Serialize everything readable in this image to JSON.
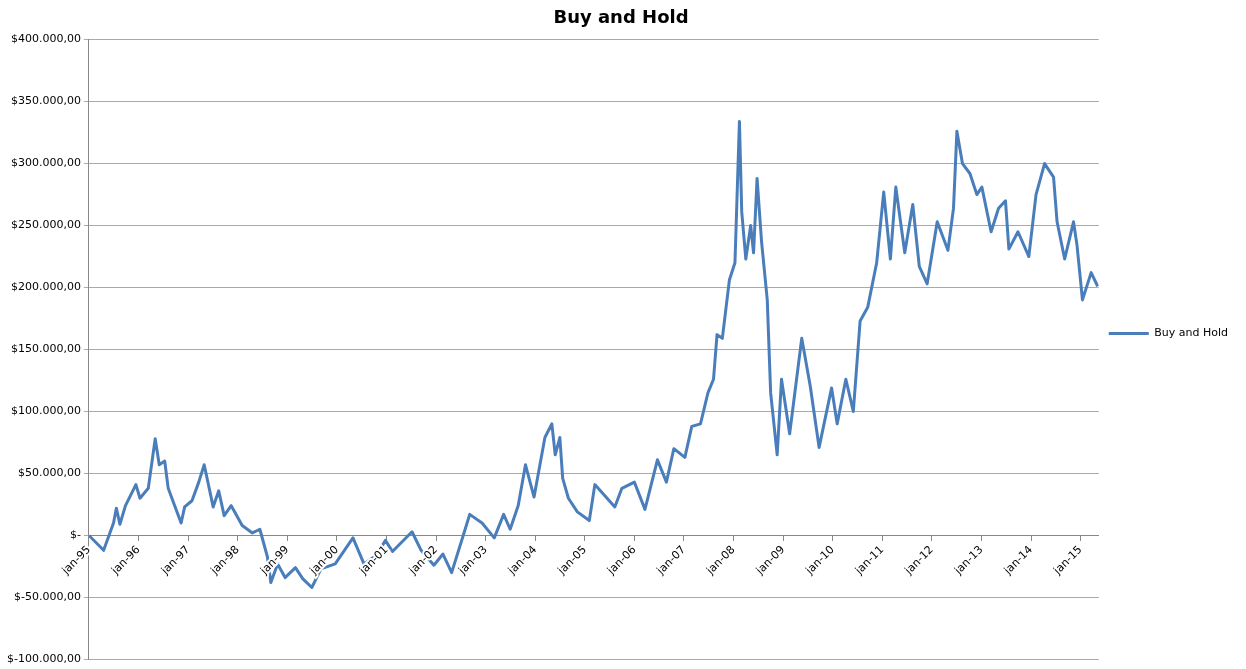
{
  "chart_data": {
    "type": "line",
    "title": "Buy and Hold",
    "x": [
      "1995-01-01",
      "1995-04-19",
      "1995-07-01",
      "1995-07-22",
      "1995-08-17",
      "1995-09-27",
      "1995-12-13",
      "1996-01-12",
      "1996-03-13",
      "1996-05-03",
      "1996-06-02",
      "1996-07-12",
      "1996-08-07",
      "1996-11-10",
      "1996-12-06",
      "1997-01-29",
      "1997-03-20",
      "1997-04-29",
      "1997-07-04",
      "1997-08-14",
      "1997-09-23",
      "1997-11-14",
      "1998-02-03",
      "1998-04-19",
      "1998-06-13",
      "1998-08-07",
      "1998-09-02",
      "1998-10-22",
      "1998-12-16",
      "1999-03-02",
      "1999-04-26",
      "1999-07-01",
      "1999-09-06",
      "1999-12-20",
      "2000-04-29",
      "2000-07-19",
      "2000-10-19",
      "2000-12-24",
      "2001-02-14",
      "2001-07-08",
      "2001-09-13",
      "2001-12-16",
      "2002-02-21",
      "2002-04-26",
      "2002-07-26",
      "2002-09-06",
      "2002-12-06",
      "2003-03-06",
      "2003-05-14",
      "2003-07-01",
      "2003-08-29",
      "2003-10-22",
      "2003-12-24",
      "2004-03-13",
      "2004-05-03",
      "2004-05-28",
      "2004-07-01",
      "2004-07-22",
      "2004-09-02",
      "2004-11-07",
      "2005-02-03",
      "2005-03-16",
      "2005-08-10",
      "2005-10-01",
      "2006-01-01",
      "2006-03-20",
      "2006-06-20",
      "2006-08-25",
      "2006-10-19",
      "2007-01-08",
      "2007-02-28",
      "2007-05-03",
      "2007-06-27",
      "2007-08-07",
      "2007-09-02",
      "2007-10-11",
      "2007-12-02",
      "2008-01-12",
      "2008-02-14",
      "2008-03-02",
      "2008-04-01",
      "2008-05-07",
      "2008-05-28",
      "2008-06-23",
      "2008-07-26",
      "2008-09-06",
      "2008-10-01",
      "2008-11-18",
      "2008-12-20",
      "2009-02-18",
      "2009-05-18",
      "2009-07-19",
      "2009-09-23",
      "2009-12-24",
      "2010-02-03",
      "2010-04-08",
      "2010-06-02",
      "2010-07-22",
      "2010-09-16",
      "2010-11-21",
      "2011-01-12",
      "2011-03-02",
      "2011-04-11",
      "2011-06-16",
      "2011-08-14",
      "2011-10-01",
      "2011-11-28",
      "2012-02-10",
      "2012-04-29",
      "2012-06-09",
      "2012-07-04",
      "2012-08-14",
      "2012-10-08",
      "2012-11-28",
      "2013-01-04",
      "2013-03-13",
      "2013-05-07",
      "2013-06-27",
      "2013-07-22",
      "2013-09-27",
      "2013-12-16",
      "2014-02-07",
      "2014-04-11",
      "2014-06-16",
      "2014-07-12",
      "2014-09-06",
      "2014-11-10",
      "2014-12-06",
      "2015-01-15",
      "2015-03-20",
      "2015-05-07"
    ],
    "series": [
      {
        "name": "Buy and Hold",
        "color": "#4a7ebb",
        "values": [
          0,
          -12000,
          10000,
          22000,
          9000,
          24000,
          41000,
          30000,
          38000,
          78000,
          57000,
          60000,
          38000,
          10000,
          23000,
          28000,
          43000,
          57000,
          23000,
          36000,
          16000,
          24000,
          8000,
          2000,
          5000,
          -17000,
          -38000,
          -23000,
          -34000,
          -26000,
          -35000,
          -42000,
          -27000,
          -23000,
          -2000,
          -23000,
          -16000,
          -4000,
          -13000,
          3000,
          -12000,
          -24000,
          -15000,
          -30000,
          2000,
          17000,
          10000,
          -2000,
          17000,
          5000,
          24000,
          57000,
          31000,
          79000,
          90000,
          65000,
          79000,
          46000,
          30000,
          19000,
          12000,
          41000,
          23000,
          38000,
          43000,
          21000,
          61000,
          43000,
          70000,
          63000,
          88000,
          90000,
          115000,
          126000,
          162000,
          159000,
          206000,
          220000,
          334000,
          261000,
          223000,
          250000,
          228000,
          288000,
          237000,
          190000,
          115000,
          65000,
          126000,
          82000,
          159000,
          121000,
          71000,
          119000,
          90000,
          126000,
          100000,
          173000,
          184000,
          220000,
          277000,
          223000,
          281000,
          228000,
          267000,
          217000,
          203000,
          253000,
          230000,
          264000,
          326000,
          300000,
          292000,
          275000,
          281000,
          245000,
          264000,
          270000,
          231000,
          245000,
          225000,
          275000,
          300000,
          289000,
          253000,
          223000,
          253000,
          234000,
          190000,
          212000,
          201000
        ]
      }
    ],
    "xlim": [
      "1995-01-01",
      "2015-05-15"
    ],
    "xticks": [
      {
        "value": "1995-01",
        "label": "jan-95"
      },
      {
        "value": "1996-01",
        "label": "jan-96"
      },
      {
        "value": "1997-01",
        "label": "jan-97"
      },
      {
        "value": "1998-01",
        "label": "jan-98"
      },
      {
        "value": "1999-01",
        "label": "jan-99"
      },
      {
        "value": "2000-01",
        "label": "jan-00"
      },
      {
        "value": "2001-01",
        "label": "jan-01"
      },
      {
        "value": "2002-01",
        "label": "jan-02"
      },
      {
        "value": "2003-01",
        "label": "jan-03"
      },
      {
        "value": "2004-01",
        "label": "jan-04"
      },
      {
        "value": "2005-01",
        "label": "jan-05"
      },
      {
        "value": "2006-01",
        "label": "jan-06"
      },
      {
        "value": "2007-01",
        "label": "jan-07"
      },
      {
        "value": "2008-01",
        "label": "jan-08"
      },
      {
        "value": "2009-01",
        "label": "jan-09"
      },
      {
        "value": "2010-01",
        "label": "jan-10"
      },
      {
        "value": "2011-01",
        "label": "jan-11"
      },
      {
        "value": "2012-01",
        "label": "jan-12"
      },
      {
        "value": "2013-01",
        "label": "jan-13"
      },
      {
        "value": "2014-01",
        "label": "jan-14"
      },
      {
        "value": "2015-01",
        "label": "jan-15"
      }
    ],
    "ylim": [
      -100000,
      400000
    ],
    "yticks": [
      {
        "value": -100000,
        "label": "$-100.000,00"
      },
      {
        "value": -50000,
        "label": "$-50.000,00"
      },
      {
        "value": 0,
        "label": "$-"
      },
      {
        "value": 50000,
        "label": "$50.000,00"
      },
      {
        "value": 100000,
        "label": "$100.000,00"
      },
      {
        "value": 150000,
        "label": "$150.000,00"
      },
      {
        "value": 200000,
        "label": "$200.000,00"
      },
      {
        "value": 250000,
        "label": "$250.000,00"
      },
      {
        "value": 300000,
        "label": "$300.000,00"
      },
      {
        "value": 350000,
        "label": "$350.000,00"
      },
      {
        "value": 400000,
        "label": "$400.000,00"
      }
    ],
    "grid": "y",
    "legend": "right",
    "marker": "none",
    "line_style": "solid"
  }
}
